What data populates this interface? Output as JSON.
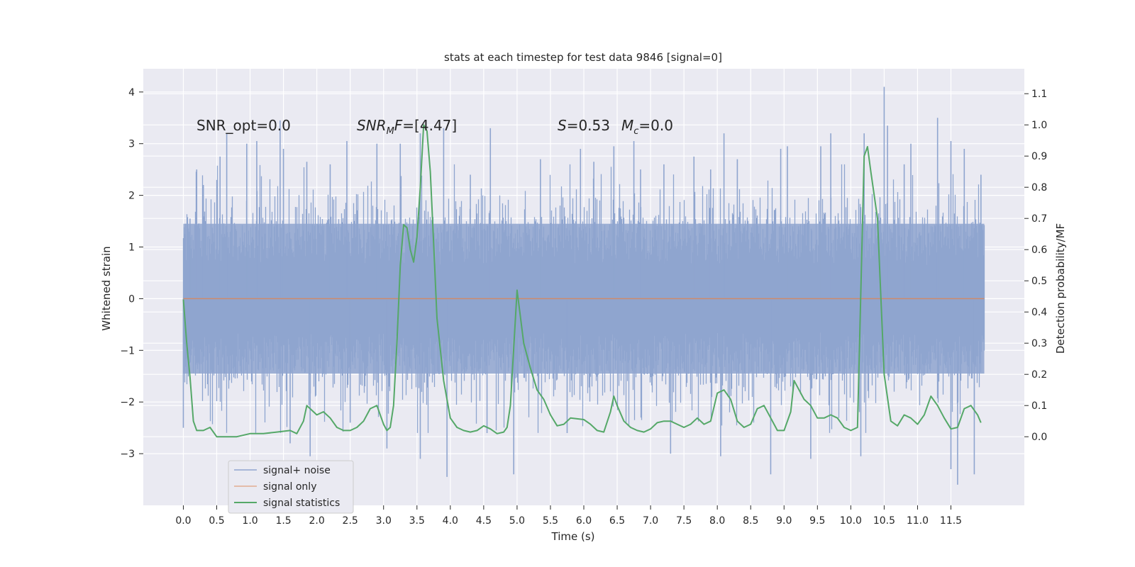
{
  "chart_data": {
    "type": "line",
    "title": "stats at each timestep for test data 9846 [signal=0]",
    "xlabel": "Time (s)",
    "ylabel": "Whitened strain",
    "ylabel_right": "Detection probability/MF",
    "xlim": [
      -0.6,
      12.6
    ],
    "ylim": [
      -4.0,
      4.45
    ],
    "ylim_right": [
      -0.22,
      1.18
    ],
    "x_ticks": [
      "0.0",
      "0.5",
      "1.0",
      "1.5",
      "2.0",
      "2.5",
      "3.0",
      "3.5",
      "4.0",
      "4.5",
      "5.0",
      "5.5",
      "6.0",
      "6.5",
      "7.0",
      "7.5",
      "8.0",
      "8.5",
      "9.0",
      "9.5",
      "10.0",
      "10.5",
      "11.0",
      "11.5"
    ],
    "y_ticks": [
      "4",
      "3",
      "2",
      "1",
      "0",
      "−1",
      "−2",
      "−3"
    ],
    "y_ticks_right": [
      "1.1",
      "1.0",
      "0.9",
      "0.8",
      "0.7",
      "0.6",
      "0.5",
      "0.4",
      "0.3",
      "0.2",
      "0.1",
      "0.0"
    ],
    "grid": true,
    "legend_position": "lower-left",
    "annotations": {
      "snr_opt": "SNR_opt=0.0",
      "snr_mf_sym": "SNR",
      "snr_mf_sub": "M",
      "snr_mf_rest": "F=[4.47]",
      "s_sym": "S",
      "s_val": "=0.53",
      "mc_sym": "M",
      "mc_sub": "c",
      "mc_val": "=0.0"
    },
    "series": [
      {
        "name": "signal+ noise",
        "axis": "left",
        "color": "#8fa5cf",
        "t_range": [
          0.0,
          12.0
        ],
        "envelope_abs": 1.45,
        "spike_peaks": [
          [
            0.1,
            1.55
          ],
          [
            0.2,
            2.5
          ],
          [
            0.3,
            2.2
          ],
          [
            0.0,
            -2.5
          ],
          [
            0.55,
            2.75
          ],
          [
            0.65,
            3.2
          ],
          [
            0.95,
            3.0
          ],
          [
            1.1,
            3.05
          ],
          [
            1.45,
            3.45
          ],
          [
            1.5,
            2.9
          ],
          [
            1.6,
            -2.8
          ],
          [
            1.85,
            2.65
          ],
          [
            1.9,
            -3.05
          ],
          [
            2.2,
            2.6
          ],
          [
            2.45,
            3.05
          ],
          [
            2.5,
            -2.4
          ],
          [
            2.9,
            3.0
          ],
          [
            3.05,
            -2.9
          ],
          [
            3.25,
            3.0
          ],
          [
            3.55,
            3.2
          ],
          [
            3.55,
            -3.1
          ],
          [
            3.9,
            3.3
          ],
          [
            3.95,
            -3.45
          ],
          [
            4.3,
            2.4
          ],
          [
            4.55,
            -2.6
          ],
          [
            4.6,
            3.3
          ],
          [
            4.95,
            -3.4
          ],
          [
            5.35,
            2.7
          ],
          [
            5.75,
            -2.6
          ],
          [
            5.95,
            2.9
          ],
          [
            6.15,
            2.65
          ],
          [
            6.45,
            2.95
          ],
          [
            6.75,
            3.05
          ],
          [
            6.85,
            2.5
          ],
          [
            7.2,
            2.6
          ],
          [
            7.3,
            -3.0
          ],
          [
            7.65,
            2.75
          ],
          [
            7.9,
            2.5
          ],
          [
            8.05,
            -3.05
          ],
          [
            8.1,
            3.2
          ],
          [
            8.3,
            2.7
          ],
          [
            8.8,
            -3.4
          ],
          [
            8.95,
            2.9
          ],
          [
            9.05,
            2.95
          ],
          [
            9.4,
            -3.1
          ],
          [
            9.55,
            2.95
          ],
          [
            9.7,
            3.2
          ],
          [
            10.15,
            -3.05
          ],
          [
            10.2,
            3.2
          ],
          [
            10.5,
            4.1
          ],
          [
            10.55,
            3.35
          ],
          [
            10.8,
            2.6
          ],
          [
            10.9,
            3.0
          ],
          [
            11.3,
            3.5
          ],
          [
            11.5,
            3.05
          ],
          [
            11.5,
            -3.3
          ],
          [
            11.6,
            -3.6
          ],
          [
            11.7,
            2.9
          ],
          [
            11.85,
            -3.4
          ],
          [
            11.95,
            2.4
          ]
        ]
      },
      {
        "name": "signal only",
        "axis": "left",
        "color": "#dd8452",
        "x": [
          0.0,
          12.0
        ],
        "y": [
          0.0,
          0.0
        ]
      },
      {
        "name": "signal statistics",
        "axis": "right",
        "color": "#55a868",
        "x": [
          0.0,
          0.05,
          0.1,
          0.15,
          0.2,
          0.3,
          0.4,
          0.5,
          0.6,
          0.8,
          1.0,
          1.2,
          1.4,
          1.6,
          1.7,
          1.8,
          1.85,
          1.9,
          2.0,
          2.1,
          2.2,
          2.3,
          2.4,
          2.5,
          2.6,
          2.7,
          2.8,
          2.9,
          3.0,
          3.05,
          3.1,
          3.15,
          3.2,
          3.25,
          3.3,
          3.35,
          3.4,
          3.45,
          3.5,
          3.55,
          3.6,
          3.65,
          3.7,
          3.75,
          3.8,
          3.9,
          4.0,
          4.1,
          4.2,
          4.3,
          4.4,
          4.5,
          4.6,
          4.7,
          4.8,
          4.85,
          4.9,
          5.0,
          5.1,
          5.2,
          5.3,
          5.4,
          5.5,
          5.6,
          5.7,
          5.8,
          6.0,
          6.1,
          6.2,
          6.3,
          6.4,
          6.45,
          6.5,
          6.6,
          6.7,
          6.8,
          6.9,
          7.0,
          7.1,
          7.2,
          7.3,
          7.4,
          7.5,
          7.6,
          7.7,
          7.8,
          7.9,
          8.0,
          8.1,
          8.2,
          8.3,
          8.4,
          8.5,
          8.6,
          8.7,
          8.8,
          8.9,
          9.0,
          9.1,
          9.15,
          9.2,
          9.3,
          9.4,
          9.5,
          9.6,
          9.7,
          9.8,
          9.9,
          10.0,
          10.1,
          10.2,
          10.25,
          10.3,
          10.4,
          10.5,
          10.6,
          10.7,
          10.8,
          10.9,
          11.0,
          11.1,
          11.2,
          11.3,
          11.4,
          11.5,
          11.6,
          11.7,
          11.8,
          11.9,
          11.95
        ],
        "y": [
          0.44,
          0.3,
          0.19,
          0.05,
          0.02,
          0.02,
          0.03,
          0.0,
          0.0,
          0.0,
          0.01,
          0.01,
          0.015,
          0.02,
          0.01,
          0.05,
          0.1,
          0.09,
          0.07,
          0.08,
          0.06,
          0.03,
          0.02,
          0.02,
          0.03,
          0.05,
          0.09,
          0.1,
          0.04,
          0.02,
          0.03,
          0.1,
          0.3,
          0.55,
          0.68,
          0.67,
          0.6,
          0.56,
          0.64,
          0.8,
          1.0,
          0.98,
          0.85,
          0.62,
          0.38,
          0.18,
          0.06,
          0.03,
          0.02,
          0.015,
          0.02,
          0.035,
          0.025,
          0.01,
          0.015,
          0.03,
          0.1,
          0.47,
          0.3,
          0.22,
          0.15,
          0.12,
          0.07,
          0.035,
          0.04,
          0.06,
          0.055,
          0.04,
          0.02,
          0.015,
          0.08,
          0.13,
          0.1,
          0.05,
          0.03,
          0.02,
          0.015,
          0.025,
          0.045,
          0.05,
          0.05,
          0.04,
          0.03,
          0.04,
          0.06,
          0.04,
          0.05,
          0.14,
          0.15,
          0.12,
          0.05,
          0.03,
          0.04,
          0.09,
          0.1,
          0.06,
          0.02,
          0.02,
          0.08,
          0.18,
          0.16,
          0.12,
          0.1,
          0.06,
          0.06,
          0.07,
          0.06,
          0.03,
          0.02,
          0.03,
          0.9,
          0.93,
          0.85,
          0.7,
          0.2,
          0.05,
          0.035,
          0.07,
          0.06,
          0.04,
          0.07,
          0.13,
          0.1,
          0.06,
          0.025,
          0.03,
          0.09,
          0.1,
          0.07,
          0.045
        ]
      }
    ]
  }
}
